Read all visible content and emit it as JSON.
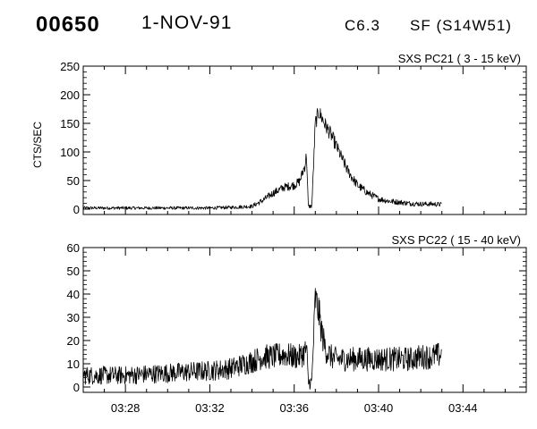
{
  "header": {
    "event_id": "00650",
    "date": "1-NOV-91",
    "goes_class": "C6.3",
    "flare_info": "SF (S14W51)"
  },
  "chart_data": [
    {
      "type": "line",
      "title": "SXS PC21  (  3 - 15 keV)",
      "ylabel": "CTS/SEC",
      "xlabel": "",
      "xlim": [
        "03:26",
        "03:47"
      ],
      "ylim": [
        0,
        250
      ],
      "yticks": [
        0,
        50,
        100,
        150,
        200,
        250
      ],
      "xtick_labels": [],
      "series": [
        {
          "x": [
            "03:26:00",
            "03:28:00",
            "03:30:00",
            "03:32:00",
            "03:33:00",
            "03:34:00",
            "03:34:30",
            "03:35:00",
            "03:35:30",
            "03:36:00",
            "03:36:15",
            "03:36:30",
            "03:36:35",
            "03:36:40",
            "03:36:45",
            "03:36:50",
            "03:36:55",
            "03:37:00",
            "03:37:10",
            "03:37:20",
            "03:37:30",
            "03:37:45",
            "03:38:00",
            "03:38:15",
            "03:38:30",
            "03:38:45",
            "03:39:00",
            "03:39:30",
            "03:40:00",
            "03:40:30",
            "03:41:00",
            "03:41:30",
            "03:42:00",
            "03:42:30",
            "03:43:00"
          ],
          "values": [
            2,
            2,
            2,
            2,
            3,
            5,
            15,
            28,
            38,
            42,
            48,
            75,
            95,
            5,
            5,
            5,
            75,
            150,
            170,
            158,
            145,
            130,
            110,
            90,
            70,
            55,
            42,
            28,
            18,
            14,
            12,
            10,
            9,
            9,
            8
          ]
        }
      ]
    },
    {
      "type": "line",
      "title": "SXS PC22  ( 15 - 40 keV)",
      "ylabel": "",
      "xlabel": "",
      "xlim": [
        "03:26",
        "03:47"
      ],
      "ylim": [
        0,
        60
      ],
      "yticks": [
        0,
        10,
        20,
        30,
        40,
        50,
        60
      ],
      "xtick_labels": [
        "03:28",
        "03:32",
        "03:36",
        "03:40",
        "03:44"
      ],
      "series": [
        {
          "x": [
            "03:26:00",
            "03:28:00",
            "03:30:00",
            "03:32:00",
            "03:33:00",
            "03:34:00",
            "03:34:30",
            "03:35:00",
            "03:35:30",
            "03:36:00",
            "03:36:15",
            "03:36:30",
            "03:36:35",
            "03:36:40",
            "03:36:45",
            "03:36:50",
            "03:36:55",
            "03:37:00",
            "03:37:10",
            "03:37:20",
            "03:37:30",
            "03:37:45",
            "03:38:00",
            "03:38:15",
            "03:38:30",
            "03:38:45",
            "03:39:00",
            "03:39:30",
            "03:40:00",
            "03:40:30",
            "03:41:00",
            "03:41:30",
            "03:42:00",
            "03:42:30",
            "03:43:00"
          ],
          "values": [
            5,
            5,
            6,
            7,
            8,
            11,
            13,
            13,
            14,
            13,
            13,
            15,
            17,
            2,
            2,
            2,
            20,
            38,
            32,
            22,
            16,
            13,
            12,
            12,
            12,
            12,
            12,
            12,
            12,
            12,
            12,
            12,
            13,
            13,
            14
          ]
        }
      ]
    }
  ]
}
